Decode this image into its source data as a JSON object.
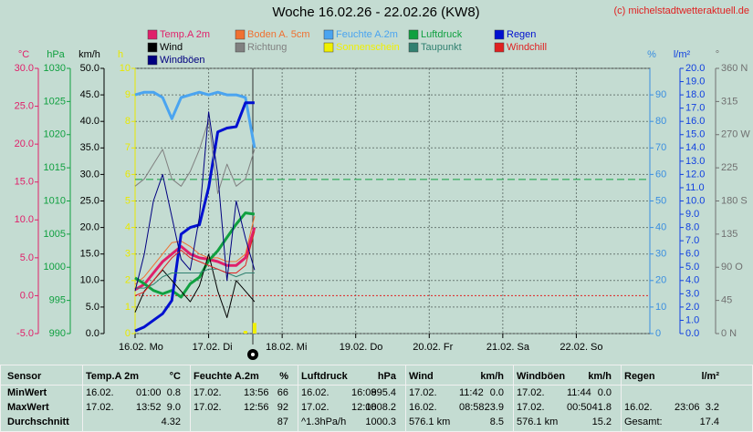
{
  "chart_data": {
    "type": "line",
    "title": "Woche 16.02.26 - 22.02.26 (KW8)",
    "credit": "(c) michelstadtwetteraktuell.de",
    "categories": [
      "16.02. Mo",
      null,
      null,
      null,
      null,
      null,
      null,
      null,
      "17.02. Di",
      null,
      null,
      null,
      null,
      null,
      null,
      null,
      "18.02. Mi",
      null,
      null,
      null,
      null,
      null,
      null,
      null,
      "19.02. Do",
      null,
      null,
      null,
      null,
      null,
      null,
      null,
      "20.02. Fr",
      null,
      null,
      null,
      null,
      null,
      null,
      null,
      "21.02. Sa",
      null,
      null,
      null,
      null,
      null,
      null,
      null,
      "22.02. So",
      null,
      null,
      null,
      null,
      null,
      null,
      null
    ],
    "grid": "km/h",
    "axes": [
      {
        "unit": "°C",
        "color": "#e0206a",
        "lim": [
          -5,
          30
        ],
        "ticks": [
          {
            "value": -5,
            "label": "-5.0"
          },
          {
            "value": 0,
            "label": "0.0"
          },
          {
            "value": 5,
            "label": "5.0"
          },
          {
            "value": 10,
            "label": "10.0"
          },
          {
            "value": 15,
            "label": "15.0"
          },
          {
            "value": 20,
            "label": "20.0"
          },
          {
            "value": 25,
            "label": "25.0"
          },
          {
            "value": 30,
            "label": "30.0"
          }
        ]
      },
      {
        "unit": "hPa",
        "color": "#10a040",
        "lim": [
          990,
          1030
        ],
        "ticks": [
          990,
          995,
          1000,
          1005,
          1010,
          1015,
          1020,
          1025,
          1030
        ]
      },
      {
        "unit": "km/h",
        "color": "#000000",
        "lim": [
          0,
          50
        ],
        "ticks": [
          {
            "value": 0,
            "label": "0.0"
          },
          {
            "value": 5,
            "label": "5.0"
          },
          {
            "value": 10,
            "label": "10.0"
          },
          {
            "value": 15,
            "label": "15.0"
          },
          {
            "value": 20,
            "label": "20.0"
          },
          {
            "value": 25,
            "label": "25.0"
          },
          {
            "value": 30,
            "label": "30.0"
          },
          {
            "value": 35,
            "label": "35.0"
          },
          {
            "value": 40,
            "label": "40.0"
          },
          {
            "value": 45,
            "label": "45.0"
          },
          {
            "value": 50,
            "label": "50.0"
          }
        ]
      },
      {
        "unit": "h",
        "color": "#e8e800",
        "lim": [
          0,
          10
        ],
        "ticks": [
          0,
          1,
          2,
          3,
          4,
          5,
          6,
          7,
          8,
          9,
          10
        ]
      },
      {
        "unit": "%",
        "color": "#3a8ee0",
        "lim": [
          0,
          100
        ],
        "ticks": [
          0,
          10,
          20,
          30,
          40,
          50,
          60,
          70,
          80,
          90
        ]
      },
      {
        "unit": "l/m²",
        "color": "#1040e0",
        "lim": [
          0,
          20
        ],
        "ticks": [
          {
            "value": 0,
            "label": "0.0"
          },
          {
            "value": 1,
            "label": "1.0"
          },
          {
            "value": 2,
            "label": "2.0"
          },
          {
            "value": 3,
            "label": "3.0"
          },
          {
            "value": 4,
            "label": "4.0"
          },
          {
            "value": 5,
            "label": "5.0"
          },
          {
            "value": 6,
            "label": "6.0"
          },
          {
            "value": 7,
            "label": "7.0"
          },
          {
            "value": 8,
            "label": "8.0"
          },
          {
            "value": 9,
            "label": "9.0"
          },
          {
            "value": 10,
            "label": "10.0"
          },
          {
            "value": 11,
            "label": "11.0"
          },
          {
            "value": 12,
            "label": "12.0"
          },
          {
            "value": 13,
            "label": "13.0"
          },
          {
            "value": 14,
            "label": "14.0"
          },
          {
            "value": 15,
            "label": "15.0"
          },
          {
            "value": 16,
            "label": "16.0"
          },
          {
            "value": 17,
            "label": "17.0"
          },
          {
            "value": 18,
            "label": "18.0"
          },
          {
            "value": 19,
            "label": "19.0"
          },
          {
            "value": 20,
            "label": "20.0"
          }
        ]
      },
      {
        "unit": "°",
        "color": "#707070",
        "lim": [
          0,
          360
        ],
        "ticks": [
          {
            "value": 0,
            "label": "0 N"
          },
          45,
          {
            "value": 90,
            "label": "90 O"
          },
          135,
          {
            "value": 180,
            "label": "180 S"
          },
          225,
          {
            "value": 270,
            "label": "270 W"
          },
          315,
          {
            "value": 360,
            "label": "360 N"
          }
        ]
      }
    ],
    "reference_lines": [
      {
        "axis": "hPa",
        "value": 1013.25,
        "color": "#10a040"
      },
      {
        "axis": "°C",
        "value": 0,
        "color": "#e02020"
      }
    ],
    "series": [
      {
        "name": "Temp.A 2m",
        "color": "#e0206a",
        "axis": "°C",
        "values": [
          0.8,
          1.5,
          3.0,
          4.5,
          5.5,
          6.5,
          5.5,
          5.0,
          4.8,
          4.5,
          4.0,
          4.0,
          5.0,
          9.0,
          null,
          null,
          null,
          null,
          null,
          null,
          null,
          null,
          null,
          null,
          null,
          null,
          null,
          null,
          null,
          null,
          null,
          null,
          null,
          null,
          null,
          null,
          null,
          null,
          null,
          null,
          null,
          null,
          null,
          null,
          null,
          null,
          null,
          null,
          null,
          null,
          null,
          null,
          null,
          null,
          null,
          null
        ]
      },
      {
        "name": "Boden A. 5cm",
        "color": "#f07030",
        "axis": "°C",
        "values": [
          1.5,
          2.5,
          4.0,
          5.5,
          7.0,
          7.2,
          6.5,
          5.5,
          5.0,
          5.0,
          4.5,
          4.5,
          5.5,
          10.5,
          null,
          null,
          null,
          null,
          null,
          null,
          null,
          null,
          null,
          null,
          null,
          null,
          null,
          null,
          null,
          null,
          null,
          null,
          null,
          null,
          null,
          null,
          null,
          null,
          null,
          null,
          null,
          null,
          null,
          null,
          null,
          null,
          null,
          null,
          null,
          null,
          null,
          null,
          null,
          null,
          null,
          null
        ]
      },
      {
        "name": "Feuchte A.2m",
        "color": "#4aa4f0",
        "axis": "%",
        "values": [
          90,
          91,
          91,
          89,
          81,
          89,
          90,
          91,
          90,
          91,
          90,
          90,
          89,
          70,
          null,
          null,
          null,
          null,
          null,
          null,
          null,
          null,
          null,
          null,
          null,
          null,
          null,
          null,
          null,
          null,
          null,
          null,
          null,
          null,
          null,
          null,
          null,
          null,
          null,
          null,
          null,
          null,
          null,
          null,
          null,
          null,
          null,
          null,
          null,
          null,
          null,
          null,
          null,
          null,
          null,
          null
        ]
      },
      {
        "name": "Luftdruck",
        "color": "#10a040",
        "axis": "hPa",
        "values": [
          998.4,
          997.5,
          996.5,
          996.0,
          996.5,
          995.5,
          997.5,
          998.5,
          1001.0,
          1002.5,
          1004.5,
          1006.5,
          1008.2,
          1008.0,
          null,
          null,
          null,
          null,
          null,
          null,
          null,
          null,
          null,
          null,
          null,
          null,
          null,
          null,
          null,
          null,
          null,
          null,
          null,
          null,
          null,
          null,
          null,
          null,
          null,
          null,
          null,
          null,
          null,
          null,
          null,
          null,
          null,
          null,
          null,
          null,
          null,
          null,
          null,
          null,
          null,
          null
        ]
      },
      {
        "name": "Regen",
        "color": "#0010d0",
        "axis": "l/m²",
        "values": [
          0.2,
          0.5,
          1.0,
          1.5,
          2.5,
          7.5,
          8.0,
          8.2,
          11.0,
          15.2,
          15.5,
          15.6,
          17.4,
          17.4,
          null,
          null,
          null,
          null,
          null,
          null,
          null,
          null,
          null,
          null,
          null,
          null,
          null,
          null,
          null,
          null,
          null,
          null,
          null,
          null,
          null,
          null,
          null,
          null,
          null,
          null,
          null,
          null,
          null,
          null,
          null,
          null,
          null,
          null,
          null,
          null,
          null,
          null,
          null,
          null,
          null,
          null
        ]
      },
      {
        "name": "Wind",
        "color": "#000000",
        "axis": "km/h",
        "values": [
          4,
          8,
          10,
          12,
          10,
          8,
          6,
          9,
          15,
          8,
          3,
          10,
          8,
          6,
          null,
          null,
          null,
          null,
          null,
          null,
          null,
          null,
          null,
          null,
          null,
          null,
          null,
          null,
          null,
          null,
          null,
          null,
          null,
          null,
          null,
          null,
          null,
          null,
          null,
          null,
          null,
          null,
          null,
          null,
          null,
          null,
          null,
          null,
          null,
          null,
          null,
          null,
          null,
          null,
          null,
          null
        ]
      },
      {
        "name": "Richtung",
        "color": "#808080",
        "axis": "°",
        "values": [
          200,
          210,
          230,
          250,
          210,
          200,
          220,
          250,
          290,
          190,
          230,
          200,
          210,
          250,
          null,
          null,
          null,
          null,
          null,
          null,
          null,
          null,
          null,
          null,
          null,
          null,
          null,
          null,
          null,
          null,
          null,
          null,
          null,
          null,
          null,
          null,
          null,
          null,
          null,
          null,
          null,
          null,
          null,
          null,
          null,
          null,
          null,
          null,
          null,
          null,
          null,
          null,
          null,
          null,
          null,
          null
        ]
      },
      {
        "name": "Sonnenschein",
        "color": "#f0f000",
        "axis": "h",
        "type": "bar",
        "values": [
          0,
          0,
          0,
          0,
          0,
          0,
          0,
          0,
          0,
          0,
          0,
          0,
          0.1,
          0.4,
          null,
          null,
          null,
          null,
          null,
          null,
          null,
          null,
          null,
          null,
          null,
          null,
          null,
          null,
          null,
          null,
          null,
          null,
          null,
          null,
          null,
          null,
          null,
          null,
          null,
          null,
          null,
          null,
          null,
          null,
          null,
          null,
          null,
          null,
          null,
          null,
          null,
          null,
          null,
          null,
          null,
          null
        ]
      },
      {
        "name": "Taupunkt",
        "color": "#308070",
        "axis": "°C",
        "values": [
          1.0,
          1.0,
          1.5,
          2.5,
          3.0,
          3.0,
          3.0,
          3.0,
          3.5,
          3.5,
          3.0,
          2.5,
          3.0,
          3.0,
          null,
          null,
          null,
          null,
          null,
          null,
          null,
          null,
          null,
          null,
          null,
          null,
          null,
          null,
          null,
          null,
          null,
          null,
          null,
          null,
          null,
          null,
          null,
          null,
          null,
          null,
          null,
          null,
          null,
          null,
          null,
          null,
          null,
          null,
          null,
          null,
          null,
          null,
          null,
          null,
          null,
          null
        ]
      },
      {
        "name": "Windchill",
        "color": "#e02020",
        "axis": "°C",
        "values": [
          0.0,
          0.5,
          2.0,
          3.5,
          5.0,
          6.0,
          5.0,
          4.5,
          4.0,
          3.5,
          3.0,
          3.0,
          4.0,
          8.5,
          null,
          null,
          null,
          null,
          null,
          null,
          null,
          null,
          null,
          null,
          null,
          null,
          null,
          null,
          null,
          null,
          null,
          null,
          null,
          null,
          null,
          null,
          null,
          null,
          null,
          null,
          null,
          null,
          null,
          null,
          null,
          null,
          null,
          null,
          null,
          null,
          null,
          null,
          null,
          null,
          null,
          null
        ]
      },
      {
        "name": "Windböen",
        "color": "#000080",
        "axis": "km/h",
        "values": [
          8,
          15,
          25,
          30,
          22,
          14,
          12,
          22,
          41.8,
          30,
          10,
          25,
          18,
          12,
          null,
          null,
          null,
          null,
          null,
          null,
          null,
          null,
          null,
          null,
          null,
          null,
          null,
          null,
          null,
          null,
          null,
          null,
          null,
          null,
          null,
          null,
          null,
          null,
          null,
          null,
          null,
          null,
          null,
          null,
          null,
          null,
          null,
          null,
          null,
          null,
          null,
          null,
          null,
          null,
          null,
          null
        ]
      }
    ]
  },
  "table": {
    "columns": [
      {
        "name": "Sensor"
      },
      {
        "name": "Temp.A 2m",
        "unit": "°C"
      },
      {
        "name": "Feuchte A.2m",
        "unit": "%"
      },
      {
        "name": "Luftdruck",
        "unit": "hPa"
      },
      {
        "name": "Wind",
        "unit": "km/h"
      },
      {
        "name": "Windböen",
        "unit": "km/h"
      },
      {
        "name": "Regen",
        "unit": "l/m²"
      }
    ],
    "rows": [
      {
        "label": "MinWert",
        "cells": [
          [
            "16.02.",
            "01:00",
            "0.8"
          ],
          [
            "17.02.",
            "13:56",
            "66"
          ],
          [
            "16.02.",
            "16:08",
            "995.4"
          ],
          [
            "17.02.",
            "11:42",
            "0.0"
          ],
          [
            "17.02.",
            "11:44",
            "0.0"
          ]
        ]
      },
      {
        "label": "MaxWert",
        "cells": [
          [
            "17.02.",
            "13:52",
            "9.0"
          ],
          [
            "17.02.",
            "12:56",
            "92"
          ],
          [
            "17.02.",
            "12:08",
            "1008.2"
          ],
          [
            "16.02.",
            "08:58",
            "23.9"
          ],
          [
            "17.02.",
            "00:50",
            "41.8"
          ],
          [
            "16.02.",
            "23:06",
            "3.2"
          ]
        ]
      },
      {
        "label": "Durchschnitt",
        "cells": [
          [
            "4.32"
          ],
          [
            "87"
          ],
          [
            "^1.3hPa/h",
            "1000.3"
          ],
          [
            "576.1 km",
            "8.5"
          ],
          [
            "576.1 km",
            "15.2"
          ],
          [
            "Gesamt:",
            "17.4"
          ]
        ]
      }
    ]
  }
}
